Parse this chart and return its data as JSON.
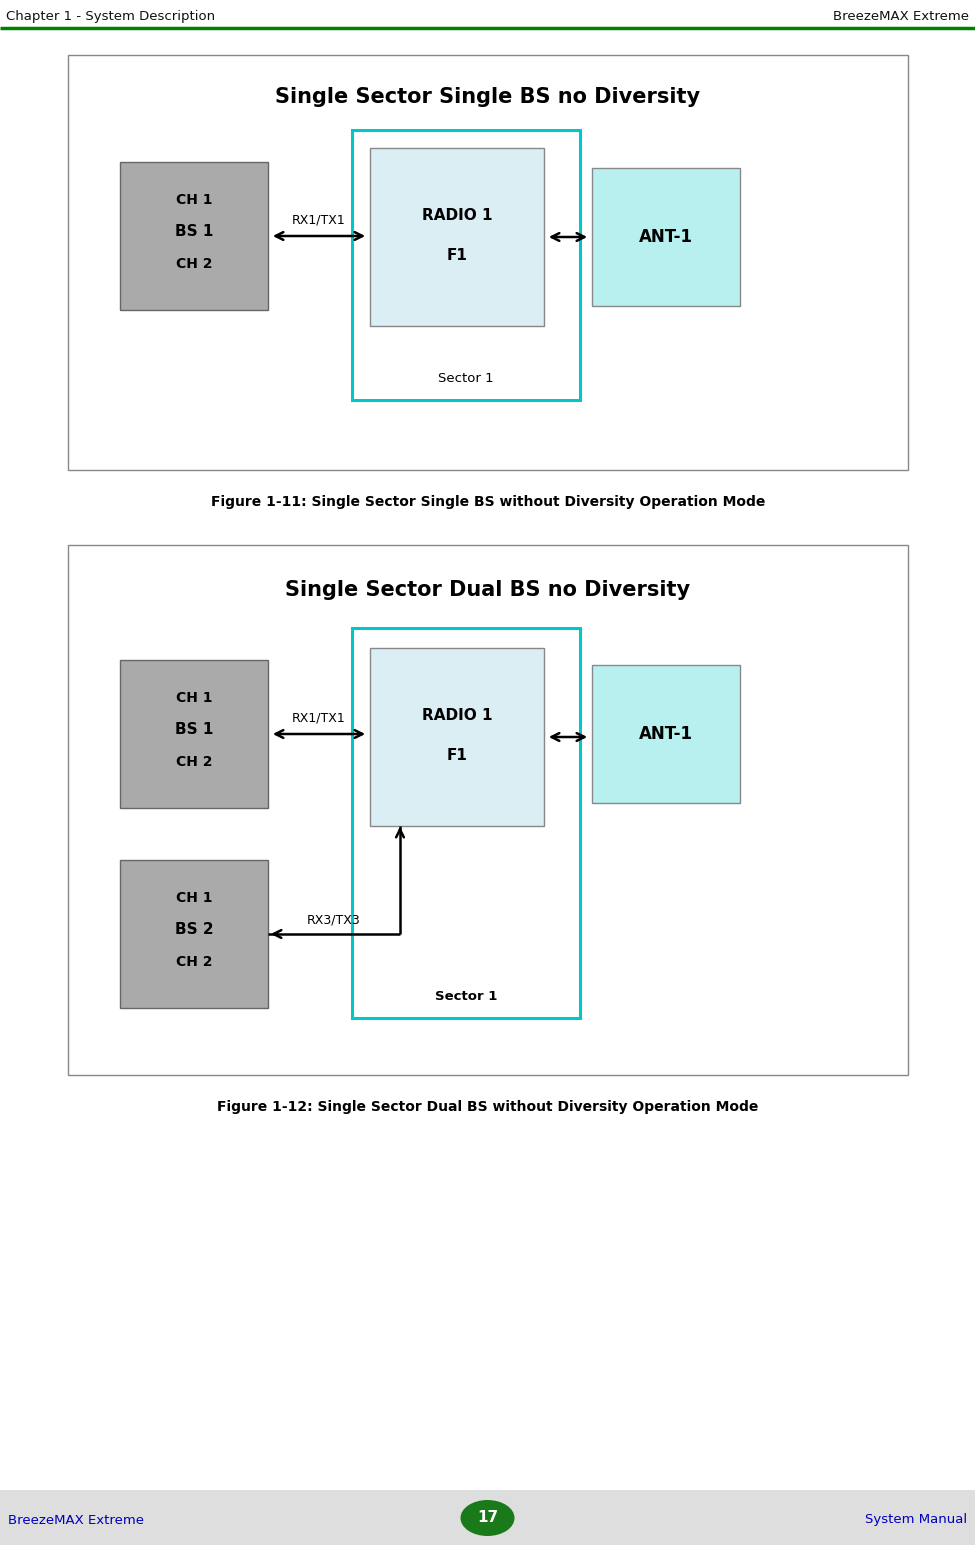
{
  "page_title_left": "Chapter 1 - System Description",
  "page_title_right": "BreezeMAX Extreme",
  "page_footer_left": "BreezeMAX Extreme",
  "page_footer_right": "System Manual",
  "page_number": "17",
  "fig1_title": "Single Sector Single BS no Diversity",
  "fig1_caption": "Figure 1-11: Single Sector Single BS without Diversity Operation Mode",
  "fig2_title": "Single Sector Dual BS no Diversity",
  "fig2_caption": "Figure 1-12: Single Sector Dual BS without Diversity Operation Mode",
  "green_line_color": "#008000",
  "blue_text_color": "#0000BB",
  "header_text_color": "#000000",
  "cyan_box_color": "#00C8C8",
  "light_blue_radio_color": "#DAEEF3",
  "gray_box_color": "#AAAAAA",
  "ant_box_color": "#B8F0F0",
  "footer_bg": "#DEDEDE"
}
